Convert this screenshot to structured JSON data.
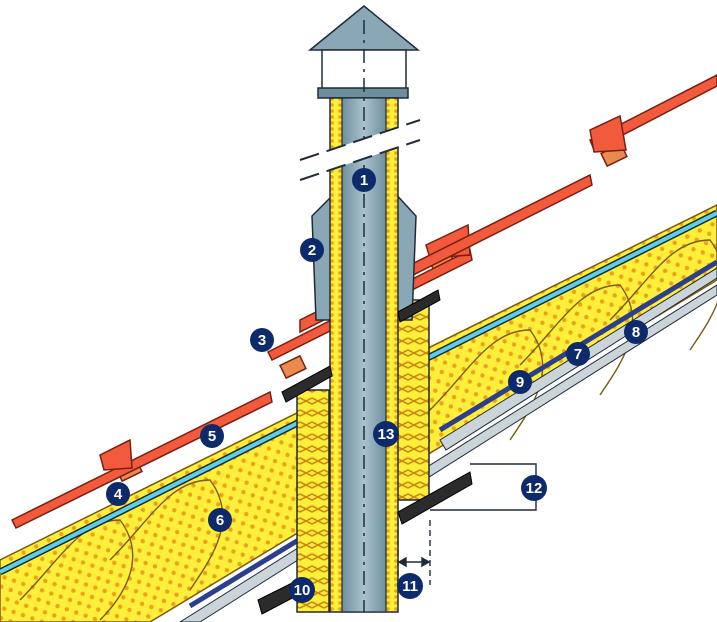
{
  "diagram": {
    "subject": "roof-penetration-ventilation-pipe",
    "colors": {
      "tile": "#F15A3C",
      "tile_stroke": "#7A1E10",
      "batten": "#E98B50",
      "membrane": "#5BD0E8",
      "insulation": "#FFEE3A",
      "insulation_dots": "#E8A317",
      "insulation_lines": "#7A5A10",
      "pipe": "#8AA7B5",
      "pipe_dark": "#5E7F8E",
      "vapour_barrier": "#2B3F8E",
      "lining": "#CBD4D9",
      "seal": "#2B2B2B",
      "badge": "#0D2A6B"
    },
    "labels": [
      {
        "id": "label-1",
        "text": "1"
      },
      {
        "id": "label-2",
        "text": "2"
      },
      {
        "id": "label-3",
        "text": "3"
      },
      {
        "id": "label-4",
        "text": "4"
      },
      {
        "id": "label-5",
        "text": "5"
      },
      {
        "id": "label-6",
        "text": "6"
      },
      {
        "id": "label-7",
        "text": "7"
      },
      {
        "id": "label-8",
        "text": "8"
      },
      {
        "id": "label-9",
        "text": "9"
      },
      {
        "id": "label-10",
        "text": "10"
      },
      {
        "id": "label-11",
        "text": "11"
      },
      {
        "id": "label-12",
        "text": "12"
      },
      {
        "id": "label-13",
        "text": "13"
      }
    ]
  }
}
